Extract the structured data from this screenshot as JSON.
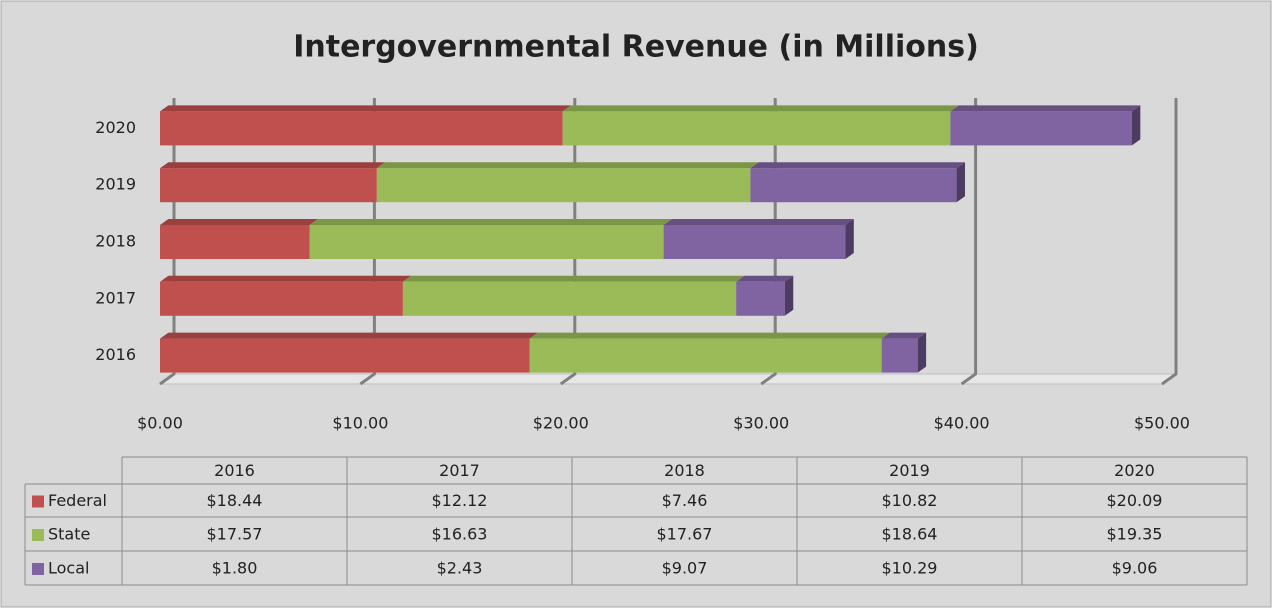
{
  "chart_data": {
    "type": "bar",
    "orientation": "horizontal",
    "stacked": true,
    "title": "Intergovernmental Revenue (in Millions)",
    "categories": [
      "2016",
      "2017",
      "2018",
      "2019",
      "2020"
    ],
    "series": [
      {
        "name": "Federal",
        "color": "#c0504d",
        "values": [
          18.44,
          12.12,
          7.46,
          10.82,
          20.09
        ],
        "value_labels": [
          "$18.44",
          "$12.12",
          "$7.46",
          "$10.82",
          "$20.09"
        ]
      },
      {
        "name": "State",
        "color": "#9bbb59",
        "values": [
          17.57,
          16.63,
          17.67,
          18.64,
          19.35
        ],
        "value_labels": [
          "$17.57",
          "$16.63",
          "$17.67",
          "$18.64",
          "$19.35"
        ]
      },
      {
        "name": "Local",
        "color": "#8064a2",
        "values": [
          1.8,
          2.43,
          9.07,
          10.29,
          9.06
        ],
        "value_labels": [
          "$1.80",
          "$2.43",
          "$9.07",
          "$10.29",
          "$9.06"
        ]
      }
    ],
    "xlim": [
      0,
      50
    ],
    "xticks": [
      {
        "value": 0,
        "label": "$0.00"
      },
      {
        "value": 10,
        "label": "$10.00"
      },
      {
        "value": 20,
        "label": "$20.00"
      },
      {
        "value": 30,
        "label": "$30.00"
      },
      {
        "value": 40,
        "label": "$40.00"
      },
      {
        "value": 50,
        "label": "$50.00"
      }
    ],
    "grid": true,
    "data_table": true
  }
}
